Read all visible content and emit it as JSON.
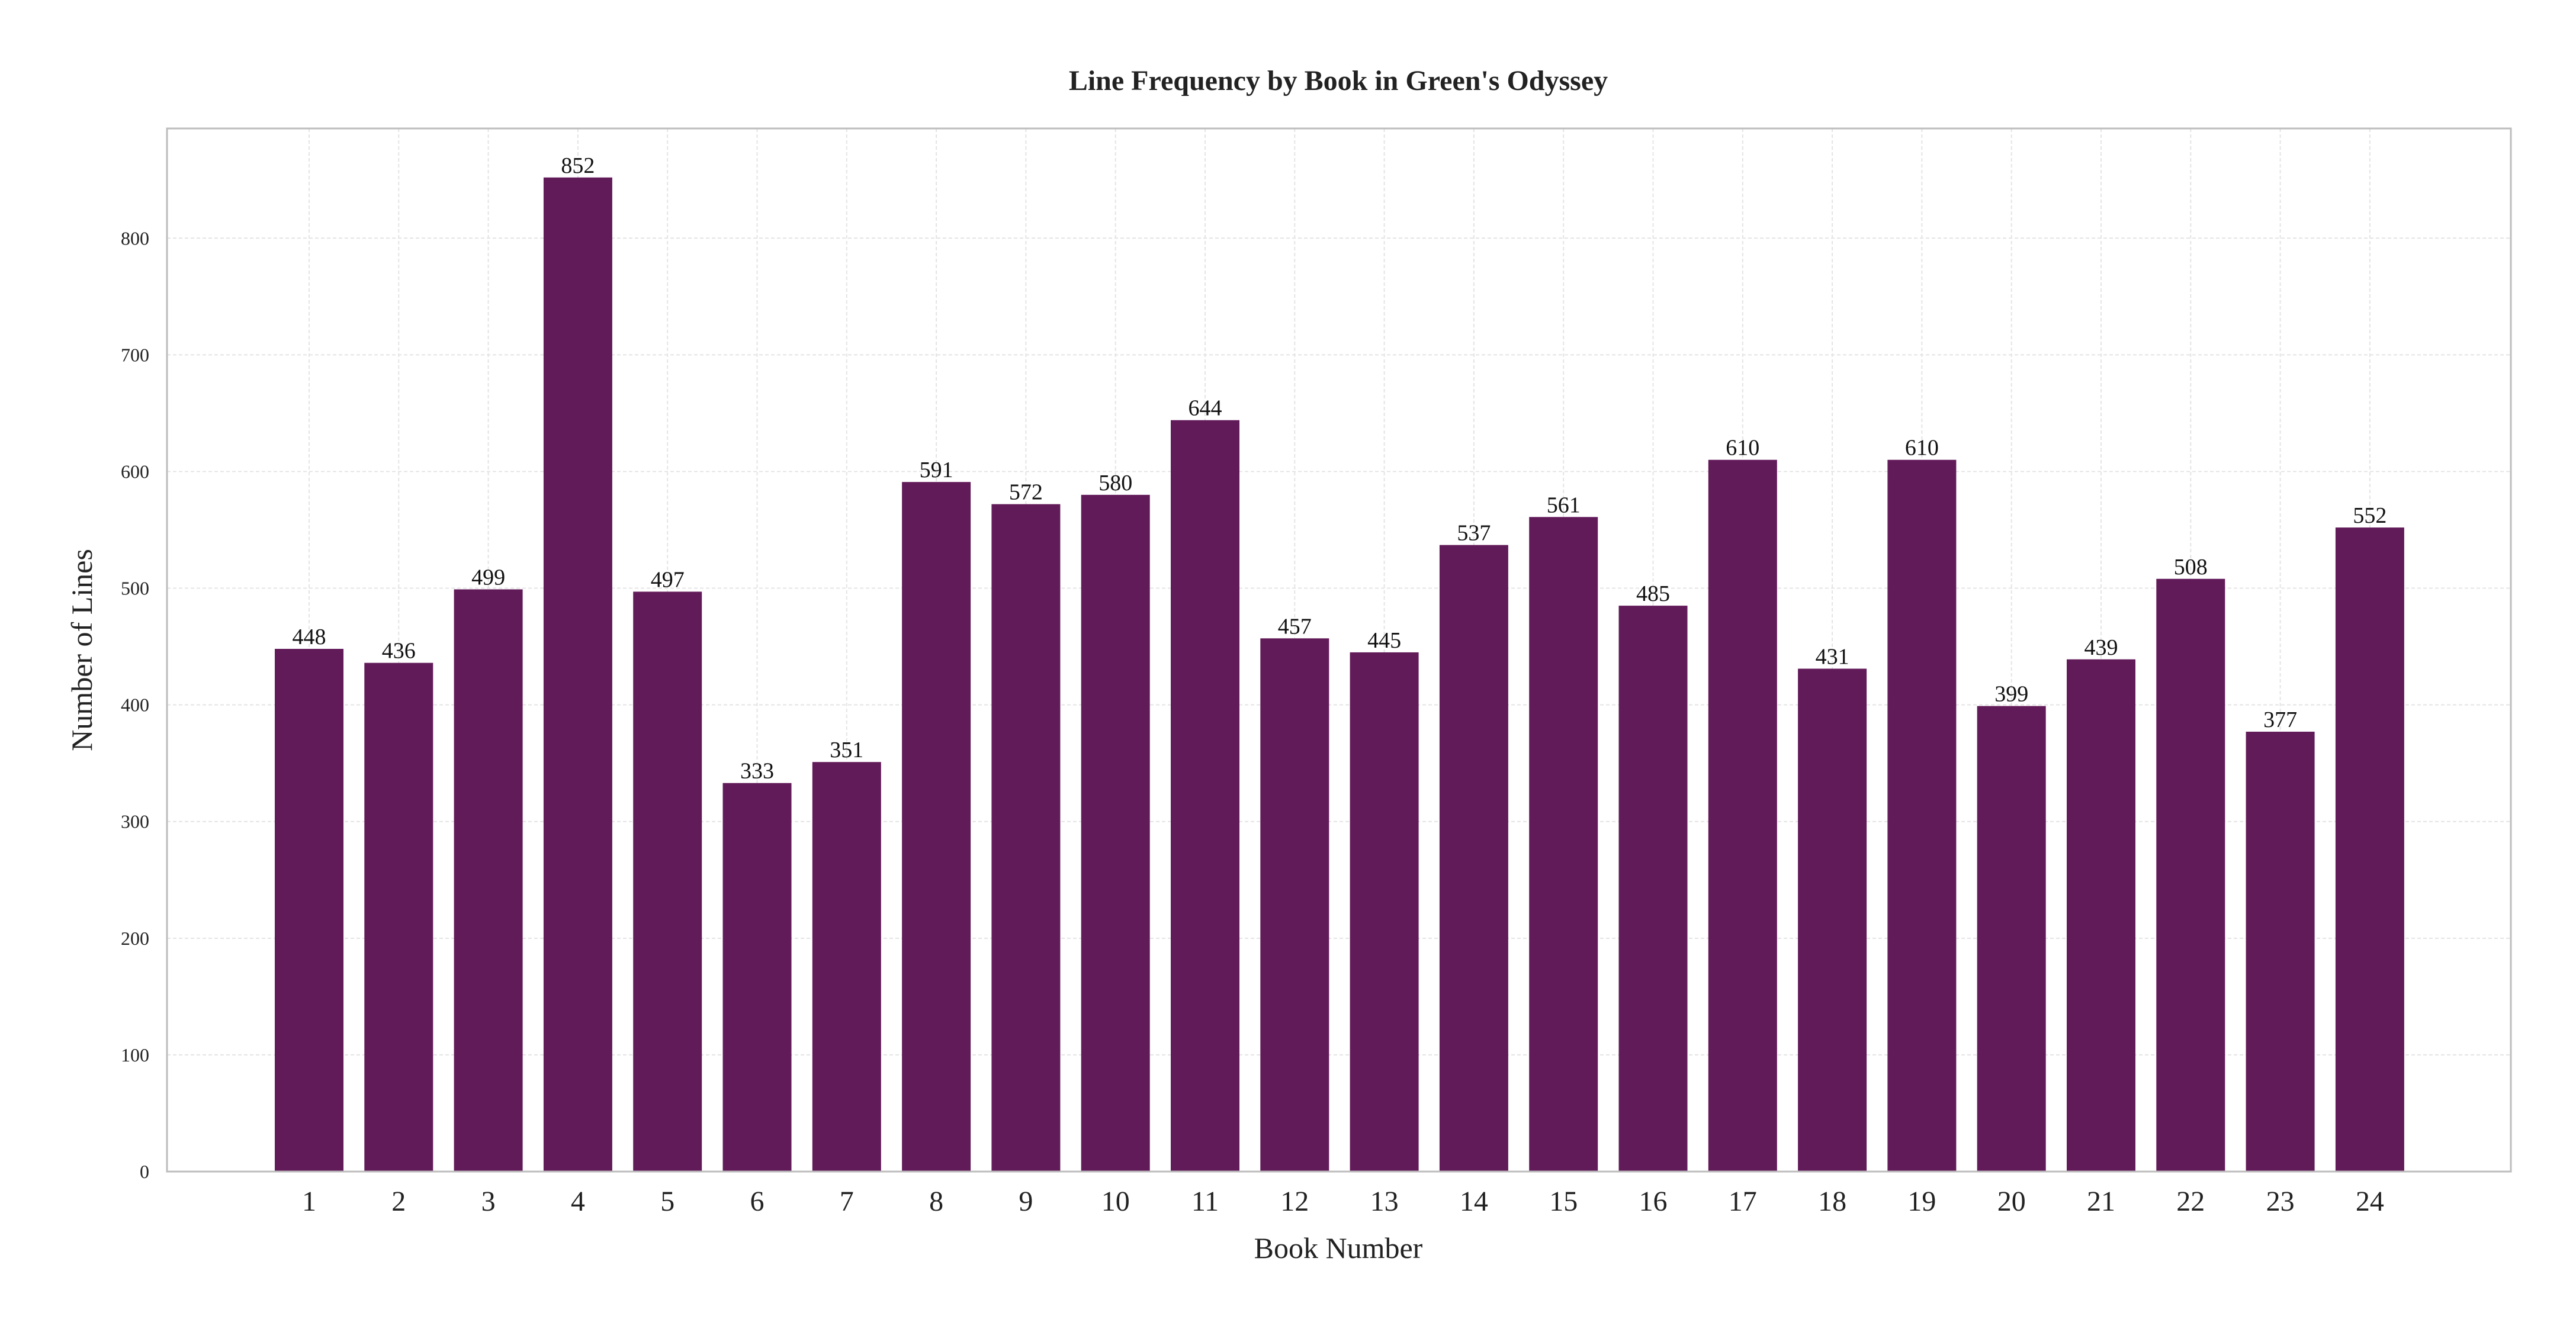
{
  "chart_data": {
    "type": "bar",
    "title": "Line Frequency by Book in Green's Odyssey",
    "xlabel": "Book Number",
    "ylabel": "Number of Lines",
    "categories": [
      "1",
      "2",
      "3",
      "4",
      "5",
      "6",
      "7",
      "8",
      "9",
      "10",
      "11",
      "12",
      "13",
      "14",
      "15",
      "16",
      "17",
      "18",
      "19",
      "20",
      "21",
      "22",
      "23",
      "24"
    ],
    "values": [
      448,
      436,
      499,
      852,
      497,
      333,
      351,
      591,
      572,
      580,
      644,
      457,
      445,
      537,
      561,
      485,
      610,
      431,
      610,
      399,
      439,
      508,
      377,
      552
    ],
    "ylim": [
      0,
      894
    ],
    "yticks": [
      0,
      100,
      200,
      300,
      400,
      500,
      600,
      700,
      800
    ],
    "grid": true,
    "bar_color": "#621b59",
    "data_labels": true
  }
}
